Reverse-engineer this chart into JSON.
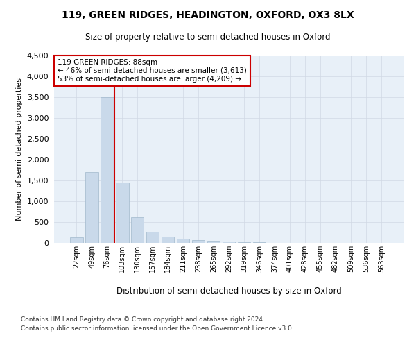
{
  "title1": "119, GREEN RIDGES, HEADINGTON, OXFORD, OX3 8LX",
  "title2": "Size of property relative to semi-detached houses in Oxford",
  "xlabel": "Distribution of semi-detached houses by size in Oxford",
  "ylabel": "Number of semi-detached properties",
  "footnote1": "Contains HM Land Registry data © Crown copyright and database right 2024.",
  "footnote2": "Contains public sector information licensed under the Open Government Licence v3.0.",
  "bar_labels": [
    "22sqm",
    "49sqm",
    "76sqm",
    "103sqm",
    "130sqm",
    "157sqm",
    "184sqm",
    "211sqm",
    "238sqm",
    "265sqm",
    "292sqm",
    "319sqm",
    "346sqm",
    "374sqm",
    "401sqm",
    "428sqm",
    "455sqm",
    "482sqm",
    "509sqm",
    "536sqm",
    "563sqm"
  ],
  "bar_values": [
    130,
    1700,
    3500,
    1450,
    620,
    270,
    150,
    100,
    65,
    45,
    30,
    20,
    10,
    5,
    3,
    2,
    1,
    1,
    1,
    0,
    0
  ],
  "bar_color": "#c9d9ea",
  "bar_edgecolor": "#a0b8cc",
  "grid_color": "#d0d8e4",
  "bg_color": "#e8f0f8",
  "annotation_title": "119 GREEN RIDGES: 88sqm",
  "annotation_line1": "← 46% of semi-detached houses are smaller (3,613)",
  "annotation_line2": "53% of semi-detached houses are larger (4,209) →",
  "annotation_box_color": "#ffffff",
  "annotation_border_color": "#cc0000",
  "vline_color": "#cc0000",
  "vline_pos": 2.0,
  "ylim_max": 4500,
  "yticks": [
    0,
    500,
    1000,
    1500,
    2000,
    2500,
    3000,
    3500,
    4000,
    4500
  ]
}
